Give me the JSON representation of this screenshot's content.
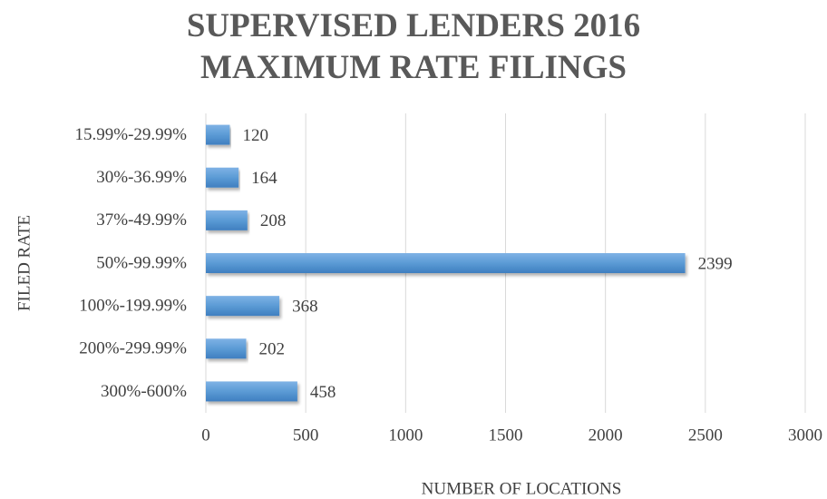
{
  "chart_data": {
    "type": "bar",
    "orientation": "horizontal",
    "title": "SUPERVISED LENDERS 2016 MAXIMUM RATE FILINGS",
    "x_label": "NUMBER OF LOCATIONS",
    "y_label": "FILED RATE",
    "categories": [
      "15.99%-29.99%",
      "30%-36.99%",
      "37%-49.99%",
      "50%-99.99%",
      "100%-199.99%",
      "200%-299.99%",
      "300%-600%"
    ],
    "values": [
      120,
      164,
      208,
      2399,
      368,
      202,
      458
    ],
    "color": "#5b9bd5",
    "xlim": [
      0,
      3000
    ],
    "xticks": [
      0,
      500,
      1000,
      1500,
      2000,
      2500,
      3000
    ],
    "grid": true
  }
}
